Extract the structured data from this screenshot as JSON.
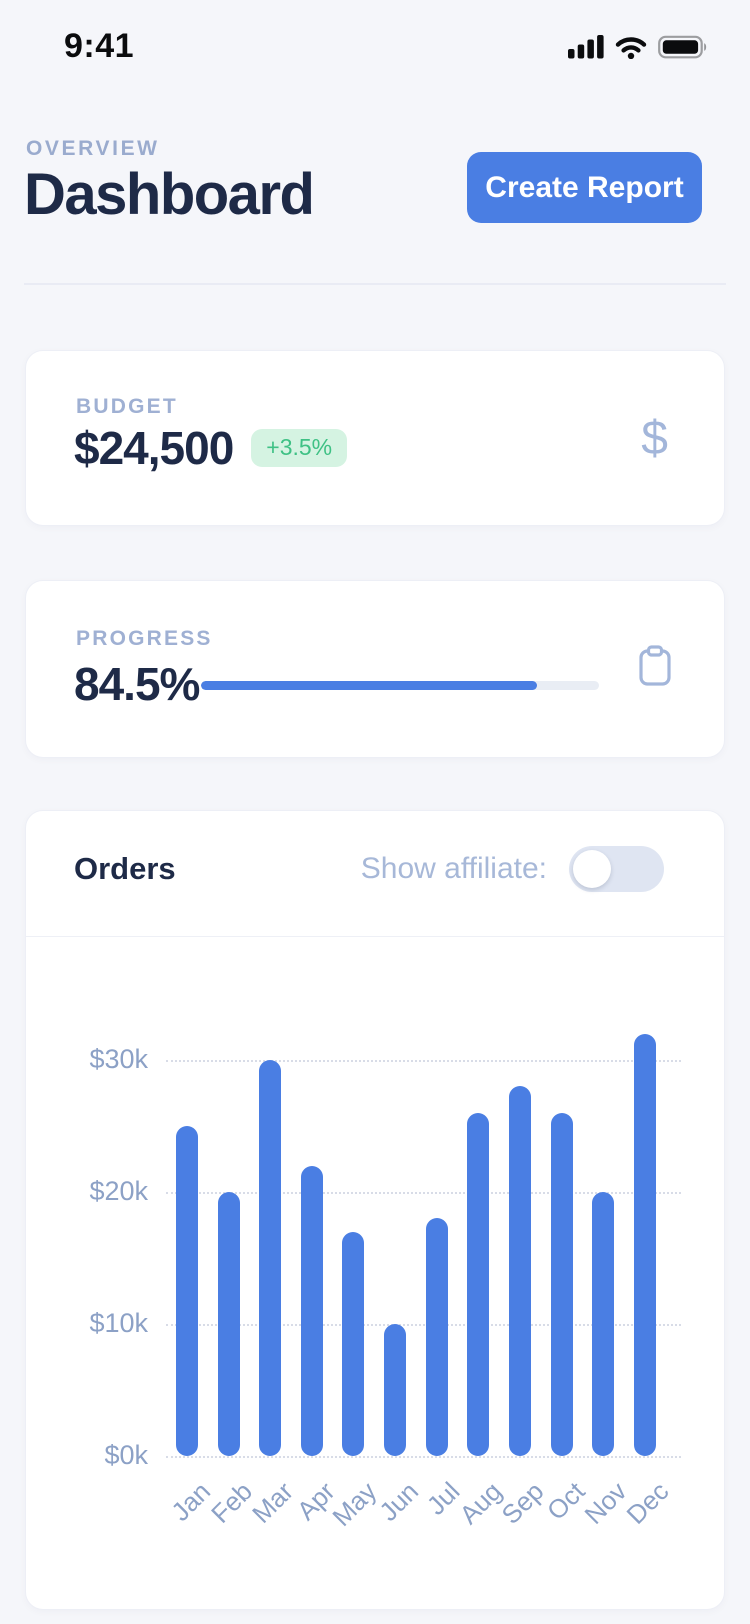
{
  "status_bar": {
    "time": "9:41"
  },
  "header": {
    "eyebrow": "OVERVIEW",
    "title": "Dashboard",
    "create_report_label": "Create Report"
  },
  "budget_card": {
    "label": "BUDGET",
    "value": "$24,500",
    "delta": "+3.5%"
  },
  "progress_card": {
    "label": "PROGRESS",
    "value": "84.5%",
    "percent": 84.5
  },
  "orders_card": {
    "title": "Orders",
    "toggle_label": "Show affiliate:",
    "toggle_on": false
  },
  "colors": {
    "accent": "#4a7ee3",
    "positive": "#3fc185",
    "positive_bg": "#d5f3e2",
    "navy_text": "#1e2a47",
    "muted_label": "#9fb0d3",
    "axis_text": "#8ca1c6"
  },
  "chart_data": {
    "type": "bar",
    "title": "Orders",
    "categories": [
      "Jan",
      "Feb",
      "Mar",
      "Apr",
      "May",
      "Jun",
      "Jul",
      "Aug",
      "Sep",
      "Oct",
      "Nov",
      "Dec"
    ],
    "values": [
      25,
      20,
      30,
      22,
      17,
      10,
      18,
      26,
      28,
      26,
      20,
      32
    ],
    "unit": "$k",
    "xlabel": "",
    "ylabel": "",
    "ylim": [
      0,
      32
    ],
    "y_ticks": [
      {
        "label": "$30k",
        "value": 30
      },
      {
        "label": "$20k",
        "value": 20
      },
      {
        "label": "$10k",
        "value": 10
      },
      {
        "label": "$0k",
        "value": 0
      }
    ],
    "grid": "horizontal-dotted",
    "legend_position": "none",
    "bar_color": "#4a7ee3"
  }
}
